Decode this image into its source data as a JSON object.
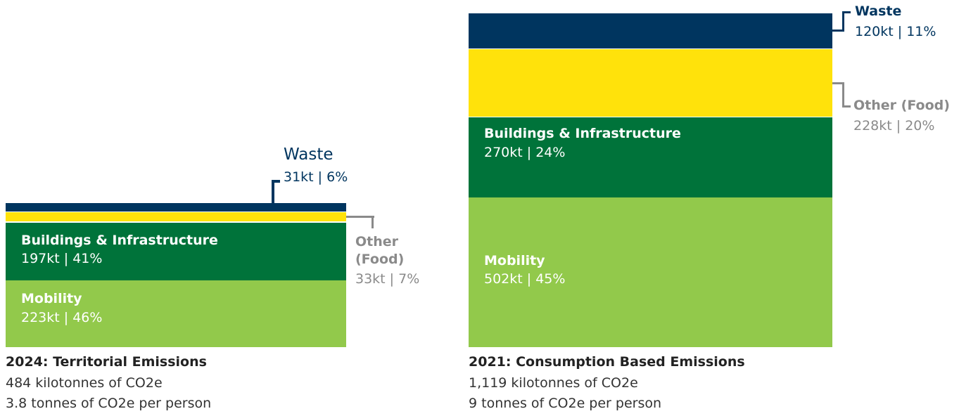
{
  "chart_data": [
    {
      "type": "stacked-block",
      "title": "2024: Territorial Emissions",
      "subtitle": "484 kilotonnes of CO2e",
      "caption": "3.8 tonnes of CO2e per person",
      "series": [
        {
          "name": "Mobility",
          "color": "#92c94b",
          "values": [
            223
          ],
          "value_labels": [
            "223kt | 46%"
          ]
        },
        {
          "name": "Buildings & Infrastructure",
          "color": "#00733a",
          "values": [
            197
          ],
          "value_labels": [
            "197kt | 41%"
          ]
        },
        {
          "name": "Other (Food)",
          "color": "#ffe20b",
          "values": [
            33
          ],
          "value_labels": [
            "33kt | 7%"
          ]
        },
        {
          "name": "Waste",
          "color": "#00355f",
          "values": [
            31
          ],
          "value_labels": [
            "31kt | 6%"
          ]
        }
      ]
    },
    {
      "type": "stacked-block",
      "title": "2021: Consumption Based Emissions",
      "subtitle": "1,119 kilotonnes of CO2e",
      "caption": "9 tonnes of CO2e per person",
      "series": [
        {
          "name": "Mobility",
          "color": "#92c94b",
          "values": [
            502
          ],
          "value_labels": [
            "502kt | 45%"
          ]
        },
        {
          "name": "Buildings & Infrastructure",
          "color": "#00733a",
          "values": [
            270
          ],
          "value_labels": [
            "270kt | 24%"
          ]
        },
        {
          "name": "Other (Food)",
          "color": "#ffe20b",
          "values": [
            228
          ],
          "value_labels": [
            "228kt | 20%"
          ]
        },
        {
          "name": "Waste",
          "color": "#00355f",
          "values": [
            120
          ],
          "value_labels": [
            "120kt | 11%"
          ]
        }
      ]
    }
  ]
}
